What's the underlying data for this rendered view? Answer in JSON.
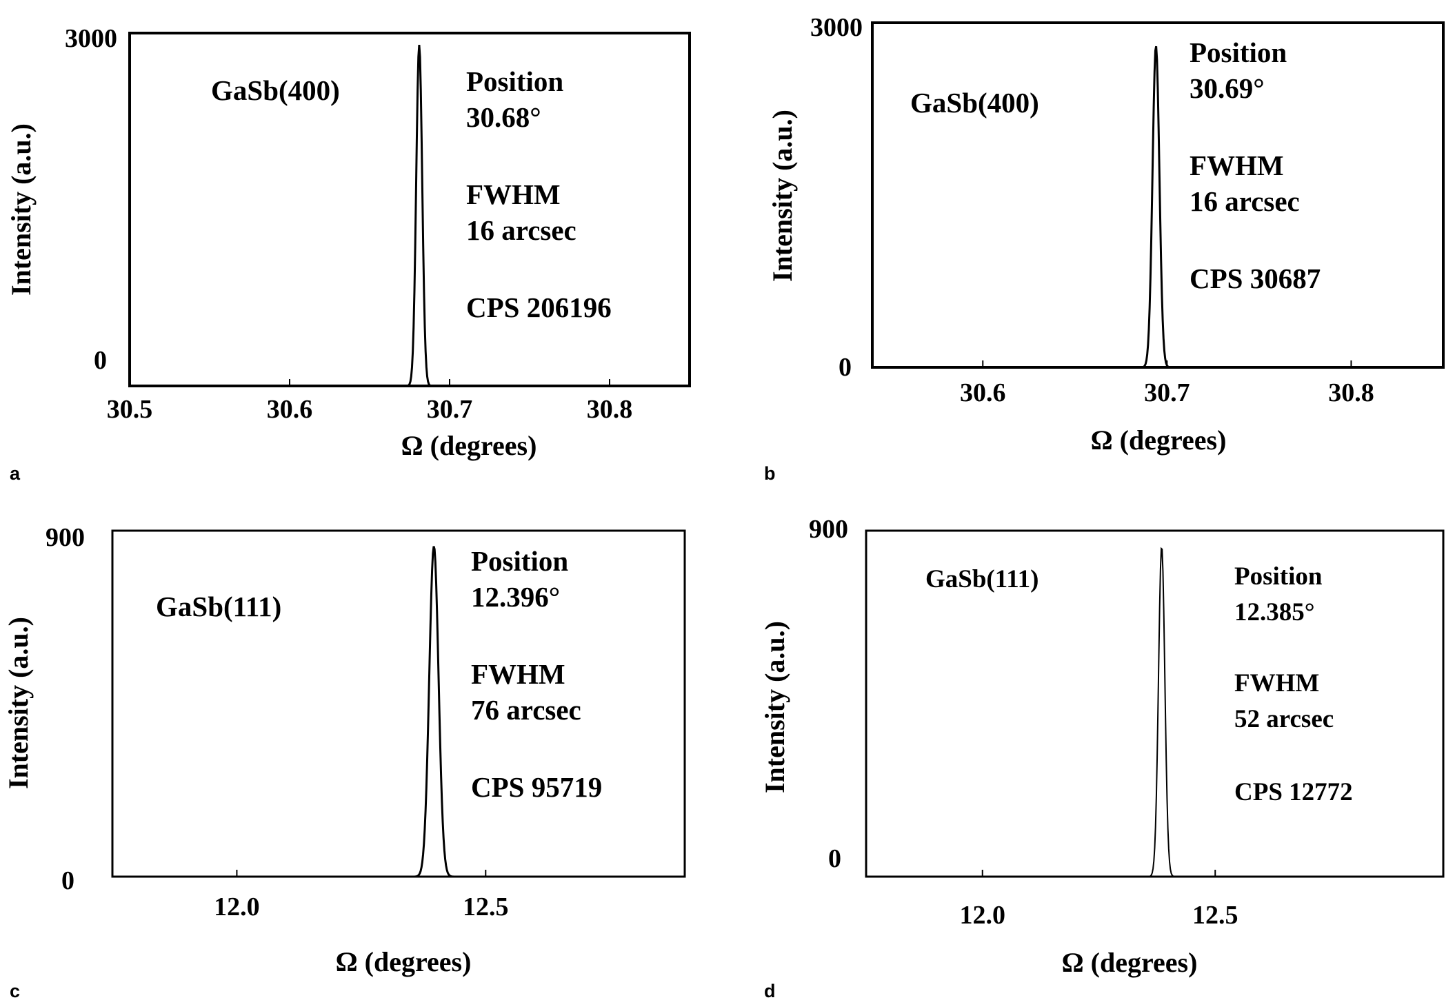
{
  "chart_data": [
    {
      "type": "line",
      "panel_label": "a",
      "xlabel": "Ω (degrees)",
      "ylabel": "Intensity (a.u.)",
      "xlim": [
        30.5,
        30.85
      ],
      "ylim": [
        0,
        3000
      ],
      "xticks": [
        30.5,
        30.6,
        30.7,
        30.8
      ],
      "xtick_labels": [
        "30.5",
        "30.6",
        "30.7",
        "30.8"
      ],
      "yticks": [
        0,
        3000
      ],
      "ytick_labels": [
        "0",
        "3000"
      ],
      "grid": false,
      "series": [
        {
          "name": "GaSb(400)",
          "peak_center": 30.681,
          "peak_height": 2900,
          "peak_halfwidth": 0.0022,
          "x_start": 30.5,
          "x_end": 30.85
        }
      ],
      "annotations": {
        "peak_label": "GaSb(400)",
        "lines": [
          "Position",
          "30.68°",
          "FWHM",
          "16 arcsec",
          "CPS 206196"
        ]
      }
    },
    {
      "type": "line",
      "panel_label": "b",
      "xlabel": "Ω (degrees)",
      "ylabel": "Intensity (a.u.)",
      "xlim": [
        30.54,
        30.85
      ],
      "ylim": [
        0,
        3000
      ],
      "xticks": [
        30.6,
        30.7,
        30.8
      ],
      "xtick_labels": [
        "30.6",
        "30.7",
        "30.8"
      ],
      "yticks": [
        0,
        3000
      ],
      "ytick_labels": [
        "0",
        "3000"
      ],
      "grid": false,
      "series": [
        {
          "name": "GaSb(400)",
          "peak_center": 30.694,
          "peak_height": 2800,
          "peak_halfwidth": 0.0022,
          "x_start": 30.54,
          "x_end": 30.85
        }
      ],
      "annotations": {
        "peak_label": "GaSb(400)",
        "lines": [
          "Position",
          "30.69°",
          "FWHM",
          "16 arcsec",
          "CPS  30687"
        ]
      }
    },
    {
      "type": "line",
      "panel_label": "c",
      "xlabel": "Ω (degrees)",
      "ylabel": "Intensity (a.u.)",
      "xlim": [
        11.75,
        12.9
      ],
      "ylim": [
        0,
        900
      ],
      "xticks": [
        12.0,
        12.5
      ],
      "xtick_labels": [
        "12.0",
        "12.5"
      ],
      "yticks": [
        0,
        900
      ],
      "ytick_labels": [
        "0",
        "900"
      ],
      "grid": false,
      "series": [
        {
          "name": "GaSb(111)",
          "peak_center": 12.396,
          "peak_height": 860,
          "peak_halfwidth": 0.011,
          "x_start": 11.75,
          "x_end": 12.9
        }
      ],
      "annotations": {
        "peak_label": "GaSb(111)",
        "lines": [
          "Position",
          "12.396°",
          "FWHM",
          "76 arcsec",
          "CPS  95719"
        ]
      }
    },
    {
      "type": "line",
      "panel_label": "d",
      "xlabel": "Ω (degrees)",
      "ylabel": "Intensity (a.u.)",
      "xlim": [
        11.75,
        12.99
      ],
      "ylim": [
        0,
        900
      ],
      "xticks": [
        12.0,
        12.5
      ],
      "xtick_labels": [
        "12.0",
        "12.5"
      ],
      "yticks": [
        0,
        900
      ],
      "ytick_labels": [
        "0",
        "900"
      ],
      "grid": false,
      "series": [
        {
          "name": "GaSb(111)",
          "peak_center": 12.385,
          "peak_height": 860,
          "peak_halfwidth": 0.008,
          "x_start": 11.75,
          "x_end": 12.99
        }
      ],
      "annotations": {
        "peak_label": "GaSb(111)",
        "lines": [
          "Position",
          "12.385°",
          "FWHM",
          "52 arcsec",
          "CPS 12772"
        ]
      }
    }
  ]
}
